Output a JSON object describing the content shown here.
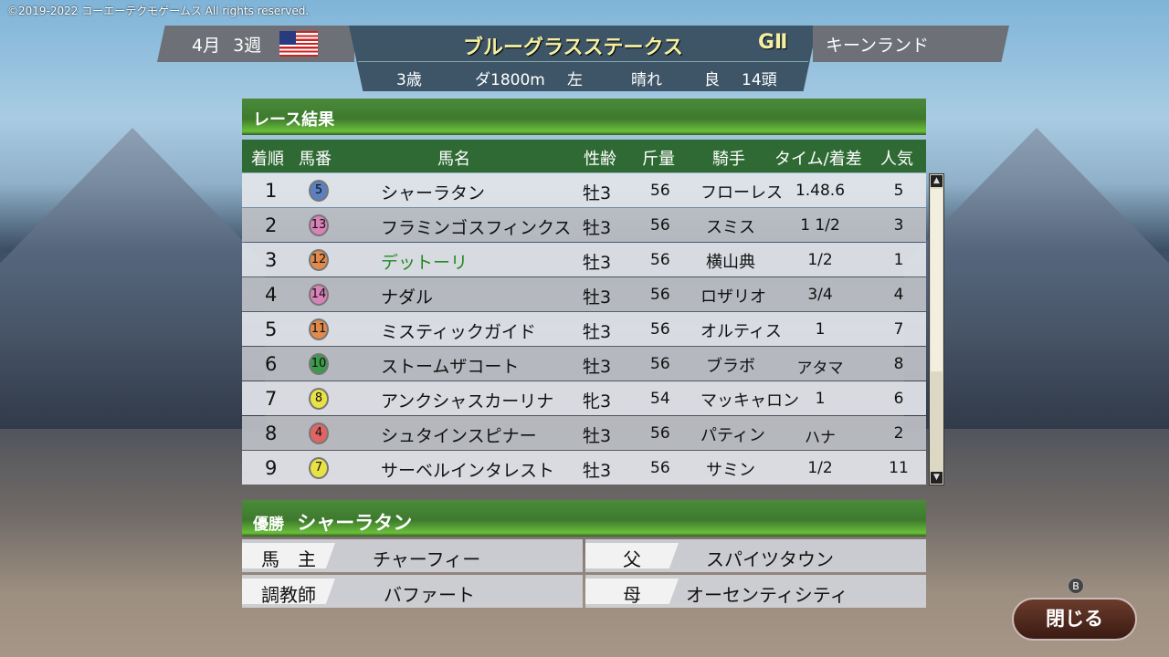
{
  "copyright": "©2019-2022 コーエーテクモゲームス All rights reserved.",
  "header": {
    "month": "4月",
    "week": "3週",
    "country_flag": "usa-flag",
    "race_name": "ブルーグラスステークス",
    "grade": "GⅡ",
    "track": "キーンランド",
    "age": "3歳",
    "distance": "ダ1800m",
    "direction": "左",
    "weather": "晴れ",
    "going": "良",
    "runners": "14頭"
  },
  "results": {
    "title": "レース結果",
    "columns": [
      "着順",
      "馬番",
      "馬名",
      "性齢",
      "斤量",
      "騎手",
      "タイム/着差",
      "人気"
    ],
    "rows": [
      {
        "pos": "1",
        "num": "5",
        "color": "#5a80c2",
        "name": "シャーラタン",
        "sexage": "牡3",
        "weight": "56",
        "jockey": "フローレス",
        "margin": "1.48.6",
        "pop": "5"
      },
      {
        "pos": "2",
        "num": "13",
        "color": "#d882b8",
        "name": "フラミンゴスフィンクス",
        "sexage": "牡3",
        "weight": "56",
        "jockey": "スミス",
        "margin": "1 1/2",
        "pop": "3"
      },
      {
        "pos": "3",
        "num": "12",
        "color": "#e08a4c",
        "name": "デットーリ",
        "sexage": "牡3",
        "weight": "56",
        "jockey": "横山典",
        "margin": "1/2",
        "pop": "1",
        "highlight": true
      },
      {
        "pos": "4",
        "num": "14",
        "color": "#d882b8",
        "name": "ナダル",
        "sexage": "牡3",
        "weight": "56",
        "jockey": "ロザリオ",
        "margin": "3/4",
        "pop": "4"
      },
      {
        "pos": "5",
        "num": "11",
        "color": "#e08a4c",
        "name": "ミスティックガイド",
        "sexage": "牡3",
        "weight": "56",
        "jockey": "オルティス",
        "margin": "1",
        "pop": "7"
      },
      {
        "pos": "6",
        "num": "10",
        "color": "#3c9a4a",
        "name": "ストームザコート",
        "sexage": "牡3",
        "weight": "56",
        "jockey": "ブラボ",
        "margin": "アタマ",
        "pop": "8"
      },
      {
        "pos": "7",
        "num": "8",
        "color": "#e8e244",
        "name": "アンクシャスカーリナ",
        "sexage": "牝3",
        "weight": "54",
        "jockey": "マッキャロン",
        "margin": "1",
        "pop": "6"
      },
      {
        "pos": "8",
        "num": "4",
        "color": "#e06464",
        "name": "シュタインスピナー",
        "sexage": "牡3",
        "weight": "56",
        "jockey": "パティン",
        "margin": "ハナ",
        "pop": "2"
      },
      {
        "pos": "9",
        "num": "7",
        "color": "#e8e244",
        "name": "サーベルインタレスト",
        "sexage": "牡3",
        "weight": "56",
        "jockey": "サミン",
        "margin": "1/2",
        "pop": "11"
      }
    ]
  },
  "winner": {
    "label": "優勝",
    "name": "シャーラタン",
    "owner_label": "馬　主",
    "owner": "チャーフィー",
    "trainer_label": "調教師",
    "trainer": "バファート",
    "sire_label": "父",
    "sire": "スパイツタウン",
    "dam_label": "母",
    "dam": "オーセンティシティ"
  },
  "close_button": {
    "label": "閉じる",
    "key_hint": "B"
  }
}
